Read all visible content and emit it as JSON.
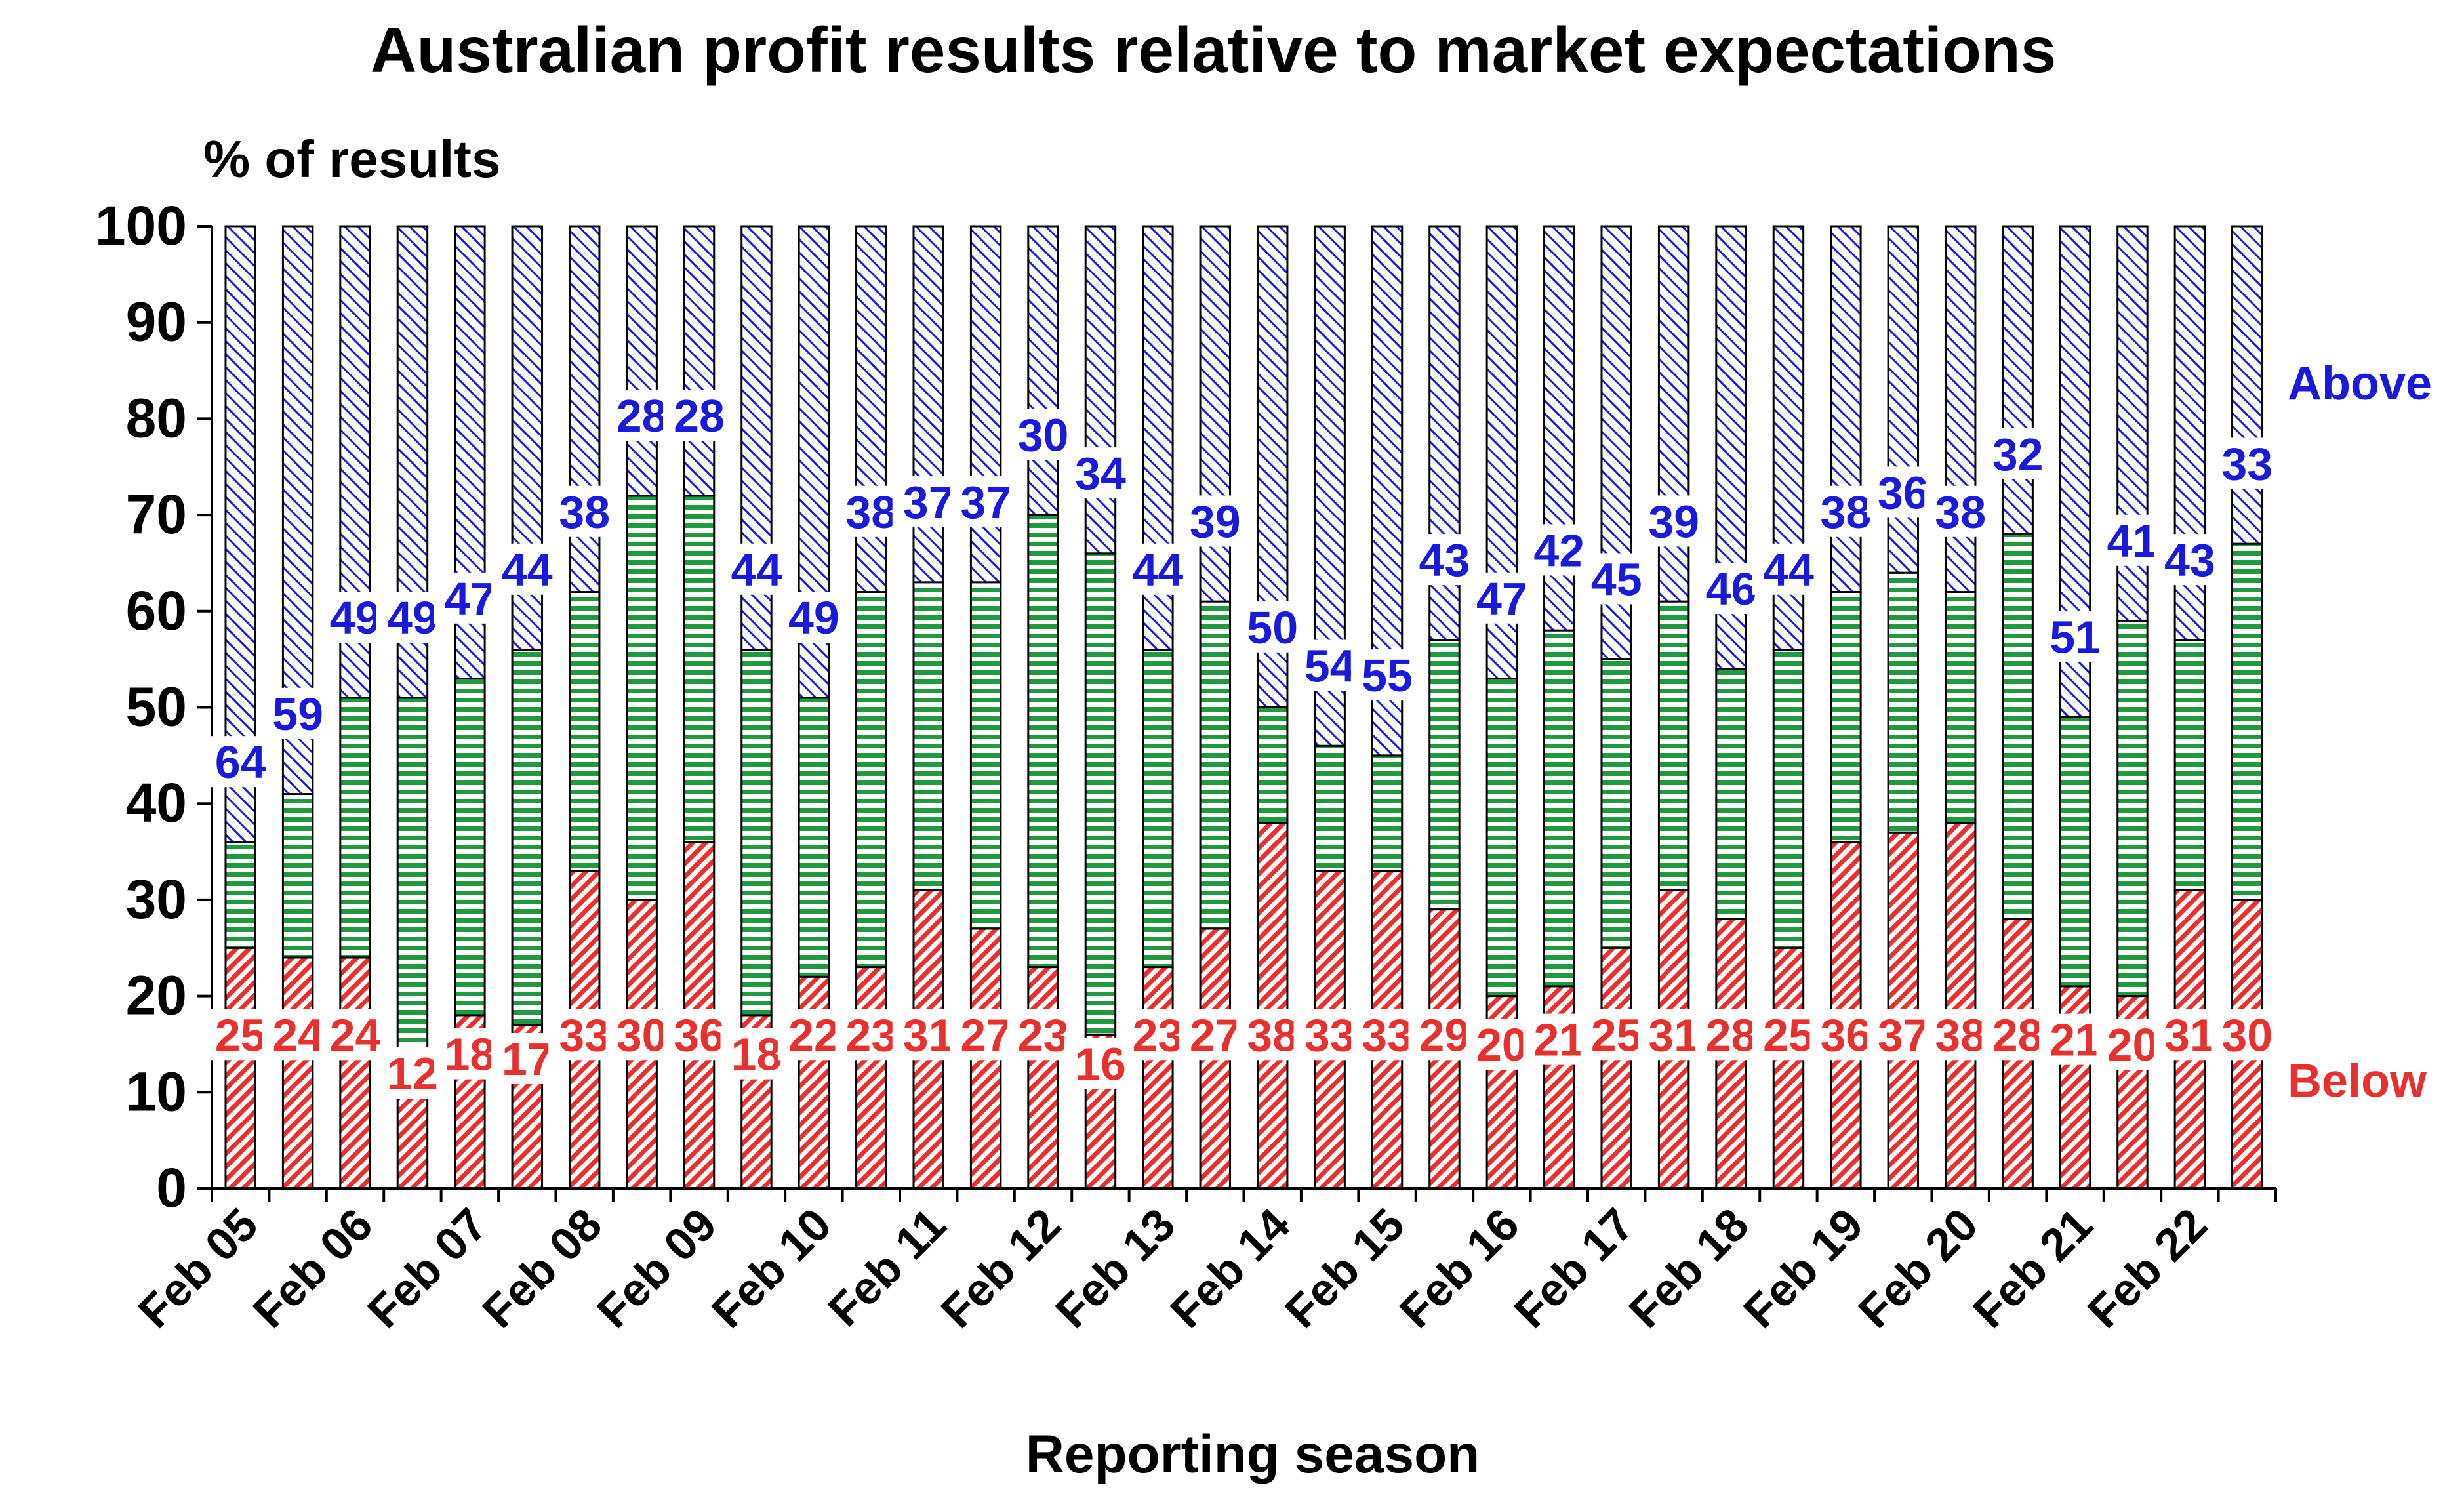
{
  "chart_data": {
    "type": "bar",
    "stacked": true,
    "title": "Australian profit results relative to market expectations",
    "ylabel": "% of results",
    "xlabel": "Reporting season",
    "ylim": [
      0,
      100
    ],
    "yticks": [
      0,
      10,
      20,
      30,
      40,
      50,
      60,
      70,
      80,
      90,
      100
    ],
    "xtick_labels": [
      "Feb 05",
      "Feb 06",
      "Feb 07",
      "Feb 08",
      "Feb 09",
      "Feb 10",
      "Feb 11",
      "Feb 12",
      "Feb 13",
      "Feb 14",
      "Feb 15",
      "Feb 16",
      "Feb 17",
      "Feb 18",
      "Feb 19",
      "Feb 20",
      "Feb 21",
      "Feb 22"
    ],
    "bars_per_label": 2,
    "series": [
      {
        "name": "Below",
        "color": "#e8302e",
        "values": [
          25,
          24,
          24,
          12,
          18,
          17,
          33,
          30,
          36,
          18,
          22,
          23,
          31,
          27,
          23,
          16,
          23,
          27,
          38,
          33,
          33,
          29,
          20,
          21,
          25,
          31,
          28,
          25,
          36,
          37,
          38,
          28,
          21,
          20,
          31,
          30
        ]
      },
      {
        "name": "",
        "color": "#1f9a3e",
        "values": [
          11,
          17,
          27,
          39,
          35,
          39,
          29,
          42,
          36,
          38,
          29,
          39,
          32,
          36,
          47,
          50,
          33,
          34,
          12,
          13,
          12,
          28,
          33,
          37,
          30,
          30,
          26,
          31,
          26,
          27,
          24,
          40,
          28,
          39,
          26,
          37
        ]
      },
      {
        "name": "Above",
        "color": "#1a1adc",
        "values": [
          64,
          59,
          49,
          49,
          47,
          44,
          38,
          28,
          28,
          44,
          49,
          38,
          37,
          37,
          30,
          34,
          44,
          39,
          50,
          54,
          55,
          43,
          47,
          42,
          45,
          39,
          46,
          44,
          38,
          36,
          38,
          32,
          51,
          41,
          43,
          33
        ]
      }
    ],
    "data_labels": {
      "below": [
        "25",
        "24",
        "24",
        "12",
        "18",
        "17",
        "33",
        "30",
        "36",
        "18",
        "22",
        "23",
        "31",
        "27",
        "23",
        "16",
        "23",
        "27",
        "38",
        "33",
        "33",
        "29",
        "20",
        "21",
        "25",
        "31",
        "28",
        "25",
        "36",
        "37",
        "38",
        "28",
        "21",
        "20",
        "31",
        "30"
      ],
      "above": [
        "64",
        "59",
        "49",
        "49",
        "47",
        "44",
        "38",
        "28",
        "28",
        "44",
        "49",
        "38",
        "37",
        "37",
        "30",
        "34",
        "44",
        "39",
        "50",
        "54",
        "55",
        "43",
        "47",
        "42",
        "45",
        "39",
        "46",
        "44",
        "38",
        "36",
        "38",
        "32",
        "51",
        "41",
        "43",
        "33"
      ]
    },
    "legend": "inline labels at right end",
    "grid": false
  }
}
